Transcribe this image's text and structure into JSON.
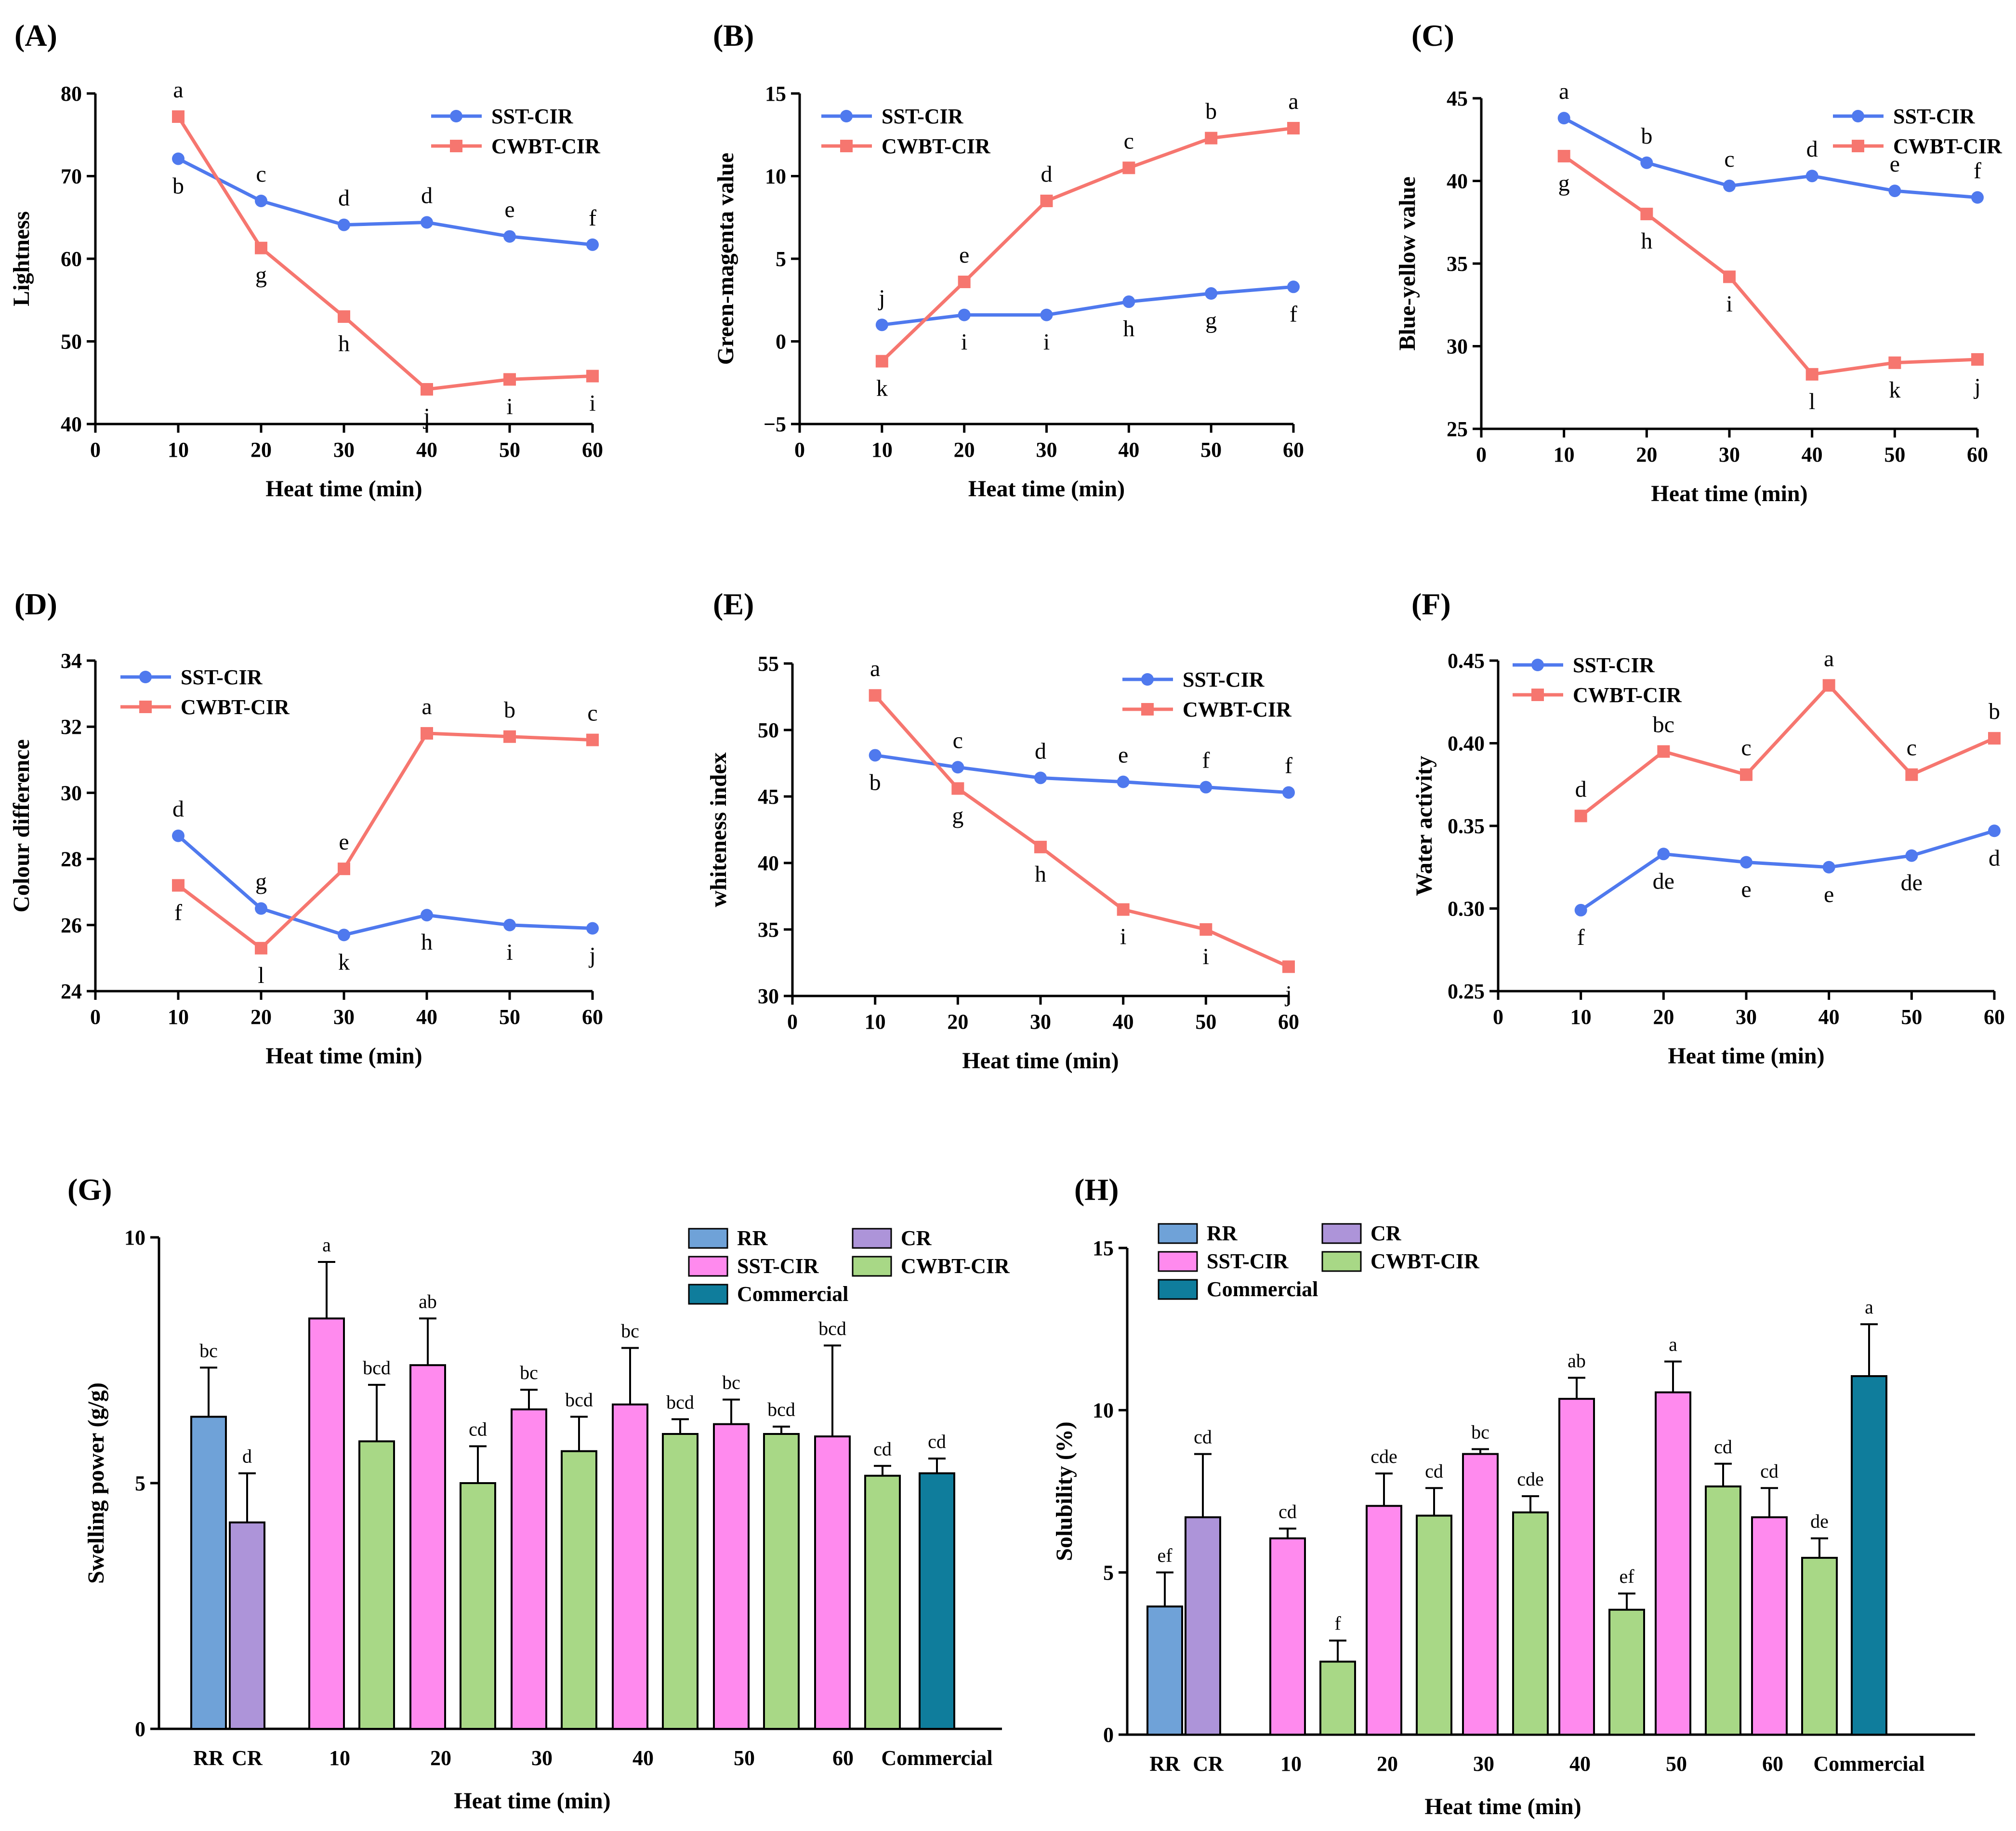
{
  "figure": {
    "colors": {
      "sst": "#4f79ee",
      "cwbt": "#f6766f",
      "rr": "#6fa2d8",
      "cr": "#ad94d9",
      "sst_bar": "#ff8aee",
      "cwbt_bar": "#a8d886",
      "commercial": "#0f7d9c"
    }
  },
  "chart_data": [
    {
      "panel": "(A)",
      "type": "line",
      "ylabel": "Lightness",
      "xlabel": "Heat time (min)",
      "xlim": [
        0,
        60
      ],
      "ylim": [
        40,
        80
      ],
      "xticks": [
        "0",
        "10",
        "20",
        "30",
        "40",
        "50",
        "60"
      ],
      "yticks": [
        "40",
        "50",
        "60",
        "70",
        "80"
      ],
      "legend_pos": "top-right",
      "x": [
        10,
        20,
        30,
        40,
        50,
        60
      ],
      "series": [
        {
          "name": "SST-CIR",
          "values": [
            72.1,
            67.0,
            64.1,
            64.4,
            62.7,
            61.7
          ],
          "letters": [
            "b",
            "c",
            "d",
            "d",
            "e",
            "f"
          ]
        },
        {
          "name": "CWBT-CIR",
          "values": [
            77.2,
            61.3,
            53.0,
            44.2,
            45.4,
            45.8
          ],
          "letters": [
            "a",
            "g",
            "h",
            "j",
            "i",
            "i"
          ]
        }
      ]
    },
    {
      "panel": "(B)",
      "type": "line",
      "ylabel": "Green-magenta value",
      "xlabel": "Heat time (min)",
      "xlim": [
        0,
        60
      ],
      "ylim": [
        -5,
        15
      ],
      "xticks": [
        "0",
        "10",
        "20",
        "30",
        "40",
        "50",
        "60"
      ],
      "yticks": [
        "−5",
        "0",
        "5",
        "10",
        "15"
      ],
      "legend_pos": "top-left",
      "x": [
        10,
        20,
        30,
        40,
        50,
        60
      ],
      "series": [
        {
          "name": "SST-CIR",
          "values": [
            1.0,
            1.6,
            1.6,
            2.4,
            2.9,
            3.3
          ],
          "letters": [
            "j",
            "i",
            "i",
            "h",
            "g",
            "f"
          ]
        },
        {
          "name": "CWBT-CIR",
          "values": [
            -1.2,
            3.6,
            8.5,
            10.5,
            12.3,
            12.9
          ],
          "letters": [
            "k",
            "e",
            "d",
            "c",
            "b",
            "a"
          ]
        }
      ]
    },
    {
      "panel": "(C)",
      "type": "line",
      "ylabel": "Blue-yellow value",
      "xlabel": "Heat time (min)",
      "xlim": [
        0,
        60
      ],
      "ylim": [
        25,
        45
      ],
      "xticks": [
        "0",
        "10",
        "20",
        "30",
        "40",
        "50",
        "60"
      ],
      "yticks": [
        "25",
        "30",
        "35",
        "40",
        "45"
      ],
      "legend_pos": "top-right",
      "x": [
        10,
        20,
        30,
        40,
        50,
        60
      ],
      "series": [
        {
          "name": "SST-CIR",
          "values": [
            43.8,
            41.1,
            39.7,
            40.3,
            39.4,
            39.0
          ],
          "letters": [
            "a",
            "b",
            "c",
            "d",
            "e",
            "f"
          ]
        },
        {
          "name": "CWBT-CIR",
          "values": [
            41.5,
            38.0,
            34.2,
            28.3,
            29.0,
            29.2
          ],
          "letters": [
            "g",
            "h",
            "i",
            "l",
            "k",
            "j"
          ]
        }
      ]
    },
    {
      "panel": "(D)",
      "type": "line",
      "ylabel": "Colour difference",
      "xlabel": "Heat time (min)",
      "xlim": [
        0,
        60
      ],
      "ylim": [
        24,
        34
      ],
      "xticks": [
        "0",
        "10",
        "20",
        "30",
        "40",
        "50",
        "60"
      ],
      "yticks": [
        "24",
        "26",
        "28",
        "30",
        "32",
        "34"
      ],
      "legend_pos": "top-left",
      "x": [
        10,
        20,
        30,
        40,
        50,
        60
      ],
      "series": [
        {
          "name": "SST-CIR",
          "values": [
            28.7,
            26.5,
            25.7,
            26.3,
            26.0,
            25.9
          ],
          "letters": [
            "d",
            "g",
            "k",
            "h",
            "i",
            "j"
          ]
        },
        {
          "name": "CWBT-CIR",
          "values": [
            27.2,
            25.3,
            27.7,
            31.8,
            31.7,
            31.6
          ],
          "letters": [
            "f",
            "l",
            "e",
            "a",
            "b",
            "c"
          ]
        }
      ]
    },
    {
      "panel": "(E)",
      "type": "line",
      "ylabel": "whiteness index",
      "xlabel": "Heat time (min)",
      "xlim": [
        0,
        60
      ],
      "ylim": [
        30,
        55
      ],
      "xticks": [
        "0",
        "10",
        "20",
        "30",
        "40",
        "50",
        "60"
      ],
      "yticks": [
        "30",
        "35",
        "40",
        "45",
        "50",
        "55"
      ],
      "legend_pos": "top-right",
      "x": [
        10,
        20,
        30,
        40,
        50,
        60
      ],
      "series": [
        {
          "name": "SST-CIR",
          "values": [
            48.1,
            47.2,
            46.4,
            46.1,
            45.7,
            45.3
          ],
          "letters": [
            "b",
            "c",
            "d",
            "e",
            "f",
            "f"
          ]
        },
        {
          "name": "CWBT-CIR",
          "values": [
            52.6,
            45.6,
            41.2,
            36.5,
            35.0,
            32.2
          ],
          "letters": [
            "a",
            "g",
            "h",
            "i",
            "i",
            "j"
          ]
        }
      ]
    },
    {
      "panel": "(F)",
      "type": "line",
      "ylabel": "Water activity",
      "xlabel": "Heat time (min)",
      "xlim": [
        0,
        60
      ],
      "ylim": [
        0.25,
        0.45
      ],
      "xticks": [
        "0",
        "10",
        "20",
        "30",
        "40",
        "50",
        "60"
      ],
      "yticks": [
        "0.25",
        "0.30",
        "0.35",
        "0.40",
        "0.45"
      ],
      "legend_pos": "top-left",
      "x": [
        10,
        20,
        30,
        40,
        50,
        60
      ],
      "series": [
        {
          "name": "SST-CIR",
          "values": [
            0.299,
            0.333,
            0.328,
            0.325,
            0.332,
            0.347
          ],
          "letters": [
            "f",
            "de",
            "e",
            "e",
            "de",
            "d"
          ]
        },
        {
          "name": "CWBT-CIR",
          "values": [
            0.356,
            0.395,
            0.381,
            0.435,
            0.381,
            0.403
          ],
          "letters": [
            "d",
            "bc",
            "c",
            "a",
            "c",
            "b"
          ]
        }
      ]
    },
    {
      "panel": "(G)",
      "type": "bar",
      "ylabel": "Swelling power (g/g)",
      "xlabel": "Heat time (min)",
      "ylim": [
        0,
        10
      ],
      "yticks": [
        "0",
        "5",
        "10"
      ],
      "categories": [
        "RR CR",
        "10",
        "20",
        "30",
        "40",
        "50",
        "60",
        "Commercial"
      ],
      "legend": [
        "RR",
        "CR",
        "SST-CIR",
        "CWBT-CIR",
        "Commercial"
      ],
      "legend_pos": "top-right",
      "bars": [
        {
          "label": "RR",
          "series": "RR",
          "value": 6.35,
          "error": 1.0,
          "letter": "bc"
        },
        {
          "label": "CR",
          "series": "CR",
          "value": 4.2,
          "error": 1.0,
          "letter": "d"
        },
        {
          "group": "10",
          "series": "SST-CIR",
          "value": 8.35,
          "error": 1.15,
          "letter": "a"
        },
        {
          "group": "10",
          "series": "CWBT-CIR",
          "value": 5.85,
          "error": 1.15,
          "letter": "bcd"
        },
        {
          "group": "20",
          "series": "SST-CIR",
          "value": 7.4,
          "error": 0.95,
          "letter": "ab"
        },
        {
          "group": "20",
          "series": "CWBT-CIR",
          "value": 5.0,
          "error": 0.75,
          "letter": "cd"
        },
        {
          "group": "30",
          "series": "SST-CIR",
          "value": 6.5,
          "error": 0.4,
          "letter": "bc"
        },
        {
          "group": "30",
          "series": "CWBT-CIR",
          "value": 5.65,
          "error": 0.7,
          "letter": "bcd"
        },
        {
          "group": "40",
          "series": "SST-CIR",
          "value": 6.6,
          "error": 1.15,
          "letter": "bc"
        },
        {
          "group": "40",
          "series": "CWBT-CIR",
          "value": 6.0,
          "error": 0.3,
          "letter": "bcd"
        },
        {
          "group": "50",
          "series": "SST-CIR",
          "value": 6.2,
          "error": 0.5,
          "letter": "bc"
        },
        {
          "group": "50",
          "series": "CWBT-CIR",
          "value": 6.0,
          "error": 0.15,
          "letter": "bcd"
        },
        {
          "group": "60",
          "series": "SST-CIR",
          "value": 5.95,
          "error": 1.85,
          "letter": "bcd"
        },
        {
          "group": "60",
          "series": "CWBT-CIR",
          "value": 5.15,
          "error": 0.2,
          "letter": "cd"
        },
        {
          "label": "Commercial",
          "series": "Commercial",
          "value": 5.2,
          "error": 0.3,
          "letter": "cd"
        }
      ]
    },
    {
      "panel": "(H)",
      "type": "bar",
      "ylabel": "Solubility (%)",
      "xlabel": "Heat time (min)",
      "ylim": [
        0,
        15
      ],
      "yticks": [
        "0",
        "5",
        "10",
        "15"
      ],
      "categories": [
        "RR CR",
        "10",
        "20",
        "30",
        "40",
        "50",
        "60",
        "Commercial"
      ],
      "legend": [
        "RR",
        "CR",
        "SST-CIR",
        "CWBT-CIR",
        "Commercial"
      ],
      "legend_pos": "top-left",
      "bars": [
        {
          "label": "RR",
          "series": "RR",
          "value": 3.95,
          "error": 1.05,
          "letter": "ef"
        },
        {
          "label": "CR",
          "series": "CR",
          "value": 6.7,
          "error": 1.95,
          "letter": "cd"
        },
        {
          "group": "10",
          "series": "SST-CIR",
          "value": 6.05,
          "error": 0.3,
          "letter": "cd"
        },
        {
          "group": "10",
          "series": "CWBT-CIR",
          "value": 2.25,
          "error": 0.65,
          "letter": "f"
        },
        {
          "group": "20",
          "series": "SST-CIR",
          "value": 7.05,
          "error": 1.0,
          "letter": "cde"
        },
        {
          "group": "20",
          "series": "CWBT-CIR",
          "value": 6.75,
          "error": 0.85,
          "letter": "cd"
        },
        {
          "group": "30",
          "series": "SST-CIR",
          "value": 8.65,
          "error": 0.15,
          "letter": "bc"
        },
        {
          "group": "30",
          "series": "CWBT-CIR",
          "value": 6.85,
          "error": 0.5,
          "letter": "cde"
        },
        {
          "group": "40",
          "series": "SST-CIR",
          "value": 10.35,
          "error": 0.65,
          "letter": "ab"
        },
        {
          "group": "40",
          "series": "CWBT-CIR",
          "value": 3.85,
          "error": 0.5,
          "letter": "ef"
        },
        {
          "group": "50",
          "series": "SST-CIR",
          "value": 10.55,
          "error": 0.95,
          "letter": "a"
        },
        {
          "group": "50",
          "series": "CWBT-CIR",
          "value": 7.65,
          "error": 0.7,
          "letter": "cd"
        },
        {
          "group": "60",
          "series": "SST-CIR",
          "value": 6.7,
          "error": 0.9,
          "letter": "cd"
        },
        {
          "group": "60",
          "series": "CWBT-CIR",
          "value": 5.45,
          "error": 0.6,
          "letter": "de"
        },
        {
          "label": "Commercial",
          "series": "Commercial",
          "value": 11.05,
          "error": 1.6,
          "letter": "a"
        }
      ]
    }
  ]
}
